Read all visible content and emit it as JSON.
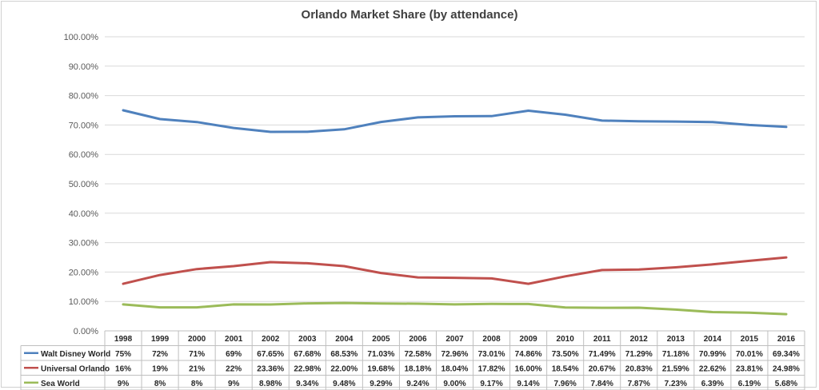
{
  "chart_data": {
    "type": "line",
    "title": "Orlando Market Share (by attendance)",
    "xlabel": "",
    "ylabel": "",
    "ylim": [
      0,
      100
    ],
    "y_ticks": [
      "0.00%",
      "10.00%",
      "20.00%",
      "30.00%",
      "40.00%",
      "50.00%",
      "60.00%",
      "70.00%",
      "80.00%",
      "90.00%",
      "100.00%"
    ],
    "grid": true,
    "legend": "data-table",
    "categories": [
      "1998",
      "1999",
      "2000",
      "2001",
      "2002",
      "2003",
      "2004",
      "2005",
      "2006",
      "2007",
      "2008",
      "2009",
      "2010",
      "2011",
      "2012",
      "2013",
      "2014",
      "2015",
      "2016"
    ],
    "series": [
      {
        "name": "Walt Disney World",
        "color": "#4f81bd",
        "values": [
          75,
          72,
          71,
          69,
          67.65,
          67.68,
          68.53,
          71.03,
          72.58,
          72.96,
          73.01,
          74.86,
          73.5,
          71.49,
          71.29,
          71.18,
          70.99,
          70.01,
          69.34
        ],
        "labels": [
          "75%",
          "72%",
          "71%",
          "69%",
          "67.65%",
          "67.68%",
          "68.53%",
          "71.03%",
          "72.58%",
          "72.96%",
          "73.01%",
          "74.86%",
          "73.50%",
          "71.49%",
          "71.29%",
          "71.18%",
          "70.99%",
          "70.01%",
          "69.34%"
        ]
      },
      {
        "name": "Universal Orlando",
        "color": "#c0504d",
        "values": [
          16,
          19,
          21,
          22,
          23.36,
          22.98,
          22,
          19.68,
          18.18,
          18.04,
          17.82,
          16,
          18.54,
          20.67,
          20.83,
          21.59,
          22.62,
          23.81,
          24.98
        ],
        "labels": [
          "16%",
          "19%",
          "21%",
          "22%",
          "23.36%",
          "22.98%",
          "22.00%",
          "19.68%",
          "18.18%",
          "18.04%",
          "17.82%",
          "16.00%",
          "18.54%",
          "20.67%",
          "20.83%",
          "21.59%",
          "22.62%",
          "23.81%",
          "24.98%"
        ]
      },
      {
        "name": "Sea World",
        "color": "#9bbb59",
        "values": [
          9,
          8,
          8,
          9,
          8.98,
          9.34,
          9.48,
          9.29,
          9.24,
          9,
          9.17,
          9.14,
          7.96,
          7.84,
          7.87,
          7.23,
          6.39,
          6.19,
          5.68
        ],
        "labels": [
          "9%",
          "8%",
          "8%",
          "9%",
          "8.98%",
          "9.34%",
          "9.48%",
          "9.29%",
          "9.24%",
          "9.00%",
          "9.17%",
          "9.14%",
          "7.96%",
          "7.84%",
          "7.87%",
          "7.23%",
          "6.39%",
          "6.19%",
          "5.68%"
        ]
      }
    ]
  }
}
